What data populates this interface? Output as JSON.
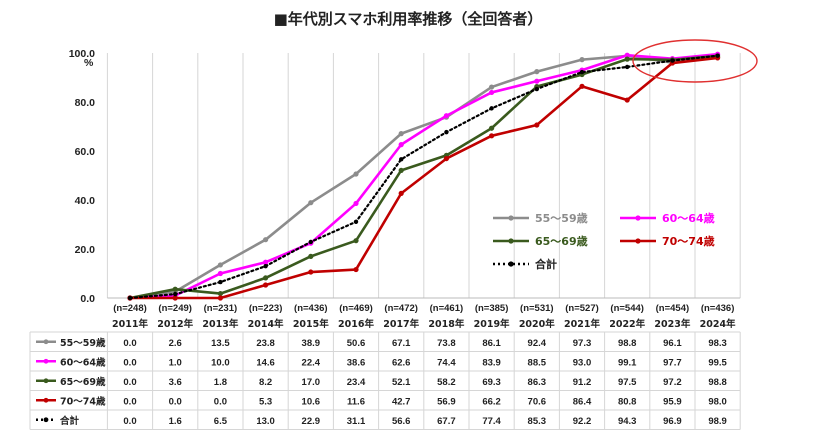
{
  "chart_data": {
    "type": "line",
    "title": "■年代別スマホ利用率推移（全回答者）",
    "y_unit": "%",
    "ylim": [
      0,
      100
    ],
    "y_ticks": [
      "0.0",
      "20.0",
      "40.0",
      "60.0",
      "80.0",
      "100.0"
    ],
    "categories": [
      "2011年",
      "2012年",
      "2013年",
      "2014年",
      "2015年",
      "2016年",
      "2017年",
      "2018年",
      "2019年",
      "2020年",
      "2021年",
      "2022年",
      "2023年",
      "2024年"
    ],
    "sample_sizes": [
      "(n=248)",
      "(n=249)",
      "(n=231)",
      "(n=223)",
      "(n=436)",
      "(n=469)",
      "(n=472)",
      "(n=461)",
      "(n=385)",
      "(n=531)",
      "(n=527)",
      "(n=544)",
      "(n=454)",
      "(n=436)"
    ],
    "series": [
      {
        "name": "55～59歳",
        "color": "#8c8c8c",
        "style": "solid",
        "values": [
          0.0,
          2.6,
          13.5,
          23.8,
          38.9,
          50.6,
          67.1,
          73.8,
          86.1,
          92.4,
          97.3,
          98.8,
          96.1,
          98.3
        ]
      },
      {
        "name": "60～64歳",
        "color": "#ff00ff",
        "style": "solid",
        "values": [
          0.0,
          1.0,
          10.0,
          14.6,
          22.4,
          38.6,
          62.6,
          74.4,
          83.9,
          88.5,
          93.0,
          99.1,
          97.7,
          99.5
        ]
      },
      {
        "name": "65～69歳",
        "color": "#3a5a1e",
        "style": "solid",
        "values": [
          0.0,
          3.6,
          1.8,
          8.2,
          17.0,
          23.4,
          52.1,
          58.2,
          69.3,
          86.3,
          91.2,
          97.5,
          97.2,
          98.8
        ]
      },
      {
        "name": "70～74歳",
        "color": "#c00000",
        "style": "solid",
        "values": [
          0.0,
          0.0,
          0.0,
          5.3,
          10.6,
          11.6,
          42.7,
          56.9,
          66.2,
          70.6,
          86.4,
          80.8,
          95.9,
          98.0
        ]
      },
      {
        "name": "合計",
        "color": "#000000",
        "style": "dotted",
        "values": [
          0.0,
          1.6,
          6.5,
          13.0,
          22.9,
          31.1,
          56.6,
          67.7,
          77.4,
          85.3,
          92.2,
          94.3,
          96.9,
          98.9
        ]
      }
    ],
    "grid": "vertical",
    "legend_position": "right-middle",
    "annotation": "red ellipse highlighting 2023年–2024年"
  }
}
